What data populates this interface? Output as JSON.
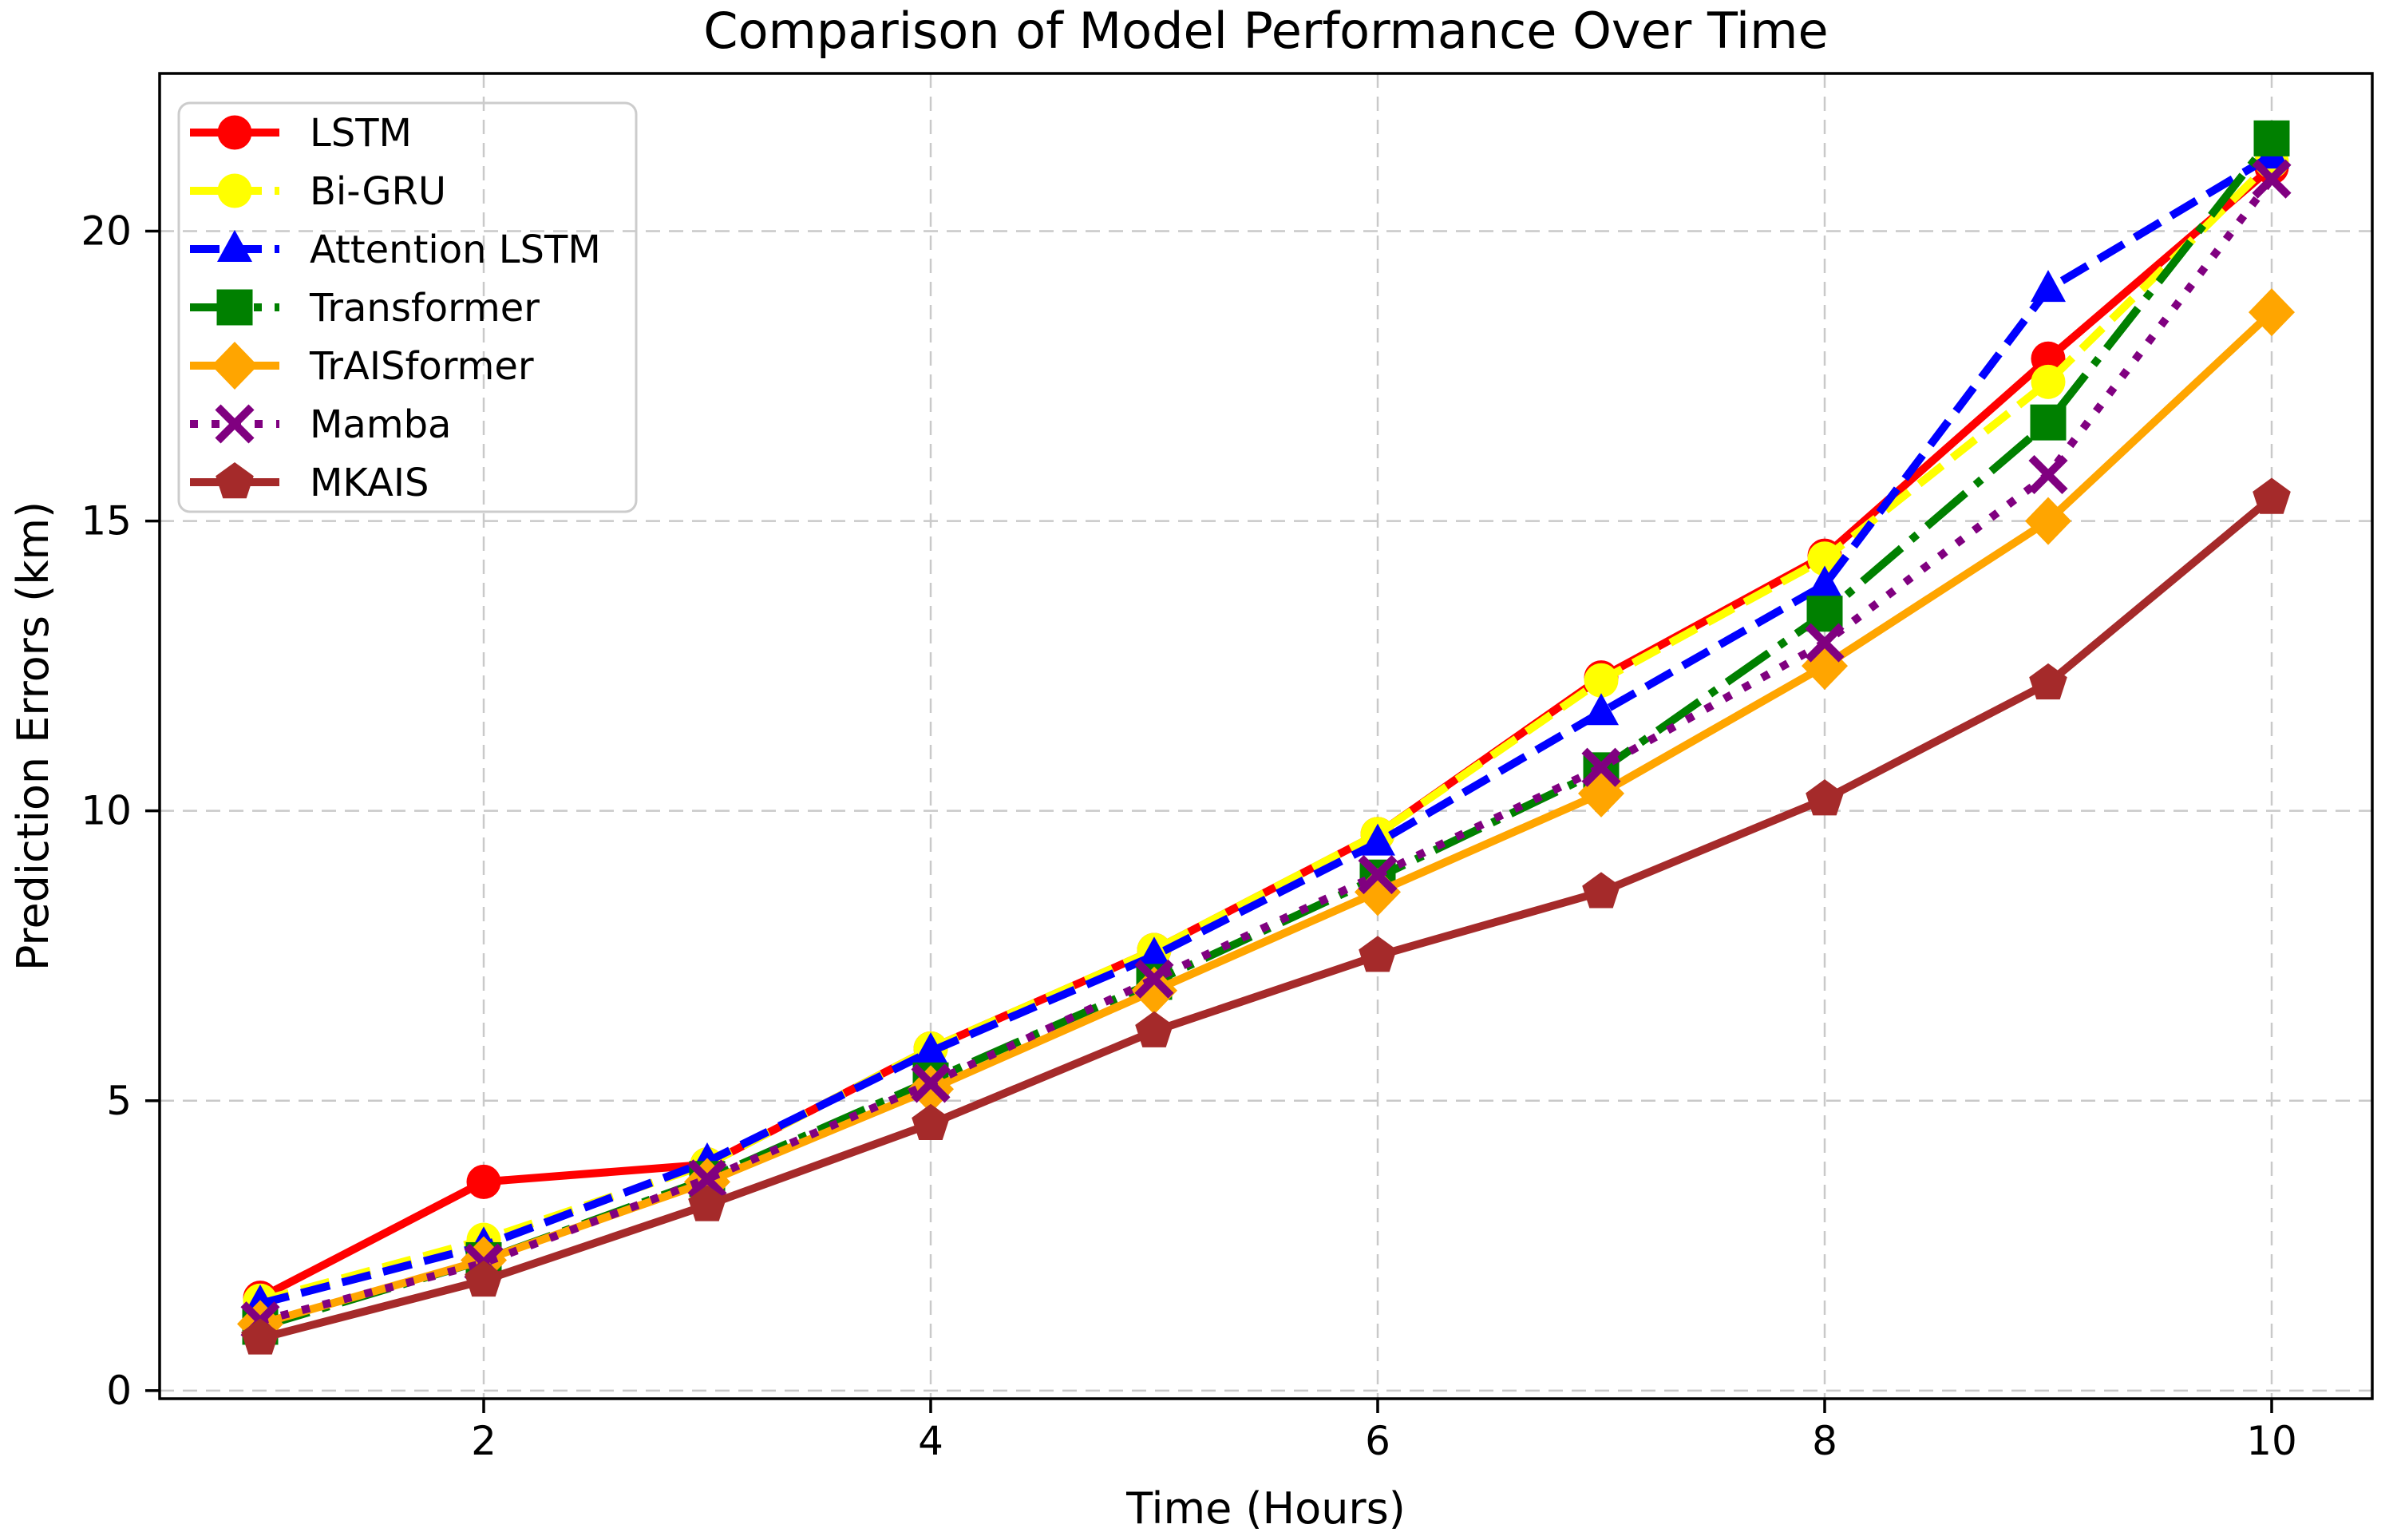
{
  "chart_data": {
    "type": "line",
    "title": "Comparison of Model Performance Over Time",
    "xlabel": "Time (Hours)",
    "ylabel": "Prediction Errors (km)",
    "x": [
      1,
      2,
      3,
      4,
      5,
      6,
      7,
      8,
      9,
      10
    ],
    "xlim": [
      0.55,
      10.45
    ],
    "ylim": [
      -0.14,
      22.72
    ],
    "xticks": [
      2,
      4,
      6,
      8,
      10
    ],
    "yticks": [
      0,
      5,
      10,
      15,
      20
    ],
    "grid": true,
    "grid_color": "#c9c9c9",
    "axis_color": "#000000",
    "background_color": "#ffffff",
    "legend_position": "upper left",
    "series": [
      {
        "name": "LSTM",
        "color": "#ff0000",
        "linestyle": "solid",
        "marker": "circle",
        "values": [
          1.6,
          3.6,
          3.9,
          5.9,
          7.6,
          9.6,
          12.3,
          14.4,
          17.8,
          21.1
        ]
      },
      {
        "name": "Bi-GRU",
        "color": "#ffff00",
        "linestyle": "dashed",
        "marker": "circle",
        "values": [
          1.55,
          2.6,
          3.9,
          5.9,
          7.6,
          9.6,
          12.25,
          14.35,
          17.4,
          21.2
        ]
      },
      {
        "name": "Attention LSTM",
        "color": "#0000ff",
        "linestyle": "dashed",
        "marker": "triangle-up",
        "values": [
          1.5,
          2.5,
          3.95,
          5.85,
          7.5,
          9.45,
          11.7,
          13.9,
          19.0,
          21.3
        ]
      },
      {
        "name": "Transformer",
        "color": "#008000",
        "linestyle": "dashdot",
        "marker": "square",
        "values": [
          1.1,
          2.25,
          3.65,
          5.35,
          7.05,
          8.85,
          10.7,
          13.4,
          16.7,
          21.6
        ]
      },
      {
        "name": "TrAISformer",
        "color": "#ffa500",
        "linestyle": "solid",
        "marker": "diamond",
        "values": [
          1.15,
          2.25,
          3.6,
          5.2,
          6.9,
          8.6,
          10.3,
          12.5,
          15.0,
          18.6
        ]
      },
      {
        "name": "Mamba",
        "color": "#800080",
        "linestyle": "dotted",
        "marker": "x",
        "values": [
          1.2,
          2.2,
          3.65,
          5.3,
          7.1,
          8.9,
          10.75,
          12.9,
          15.8,
          20.9
        ]
      },
      {
        "name": "MKAIS",
        "color": "#a52a2a",
        "linestyle": "solid",
        "marker": "pentagon",
        "values": [
          0.9,
          1.9,
          3.2,
          4.6,
          6.2,
          7.5,
          8.6,
          10.2,
          12.2,
          15.4
        ]
      }
    ]
  }
}
